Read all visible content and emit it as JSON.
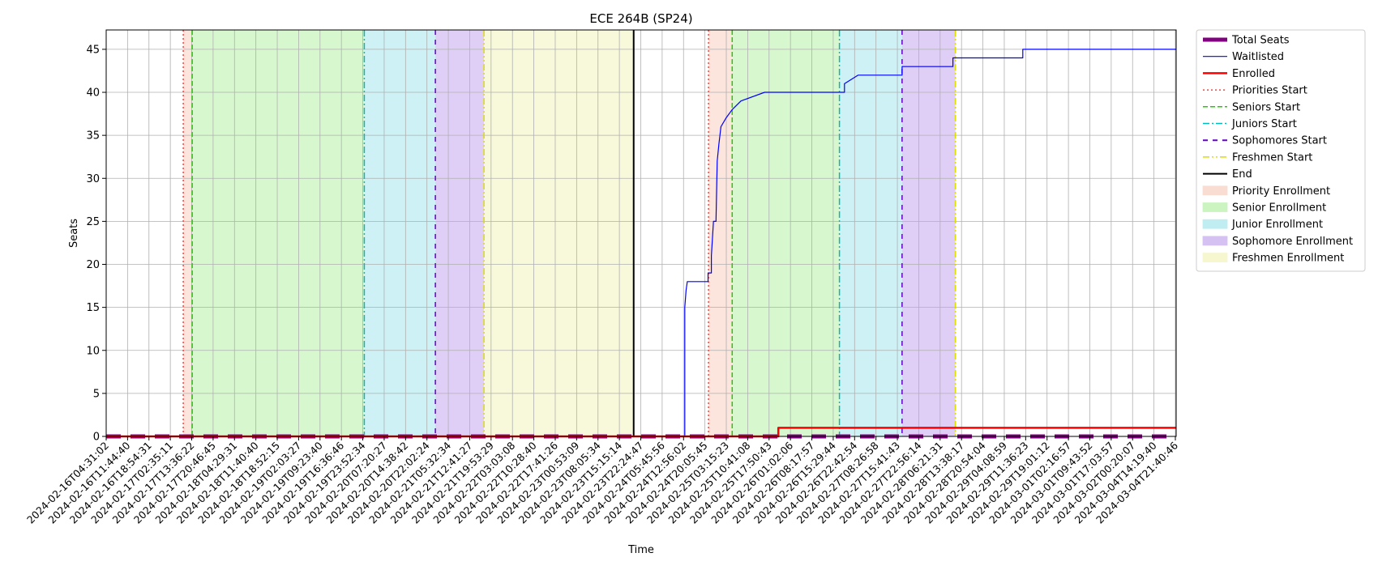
{
  "chart_data": {
    "type": "line",
    "title": "ECE 264B (SP24)",
    "xlabel": "Time",
    "ylabel": "Seats",
    "xlim": [
      "2024-02-16T04:31:02",
      "2024-03-05T01:30:00"
    ],
    "ylim": [
      0,
      47.25
    ],
    "grid": true,
    "legend_position": "outside-right",
    "x_tick_labels": [
      "2024-02-16T04:31:02",
      "2024-02-16T11:44:40",
      "2024-02-16T18:54:31",
      "2024-02-17T02:35:11",
      "2024-02-17T13:36:22",
      "2024-02-17T20:46:45",
      "2024-02-18T04:29:31",
      "2024-02-18T11:40:40",
      "2024-02-18T18:52:15",
      "2024-02-19T02:03:27",
      "2024-02-19T09:23:40",
      "2024-02-19T16:36:46",
      "2024-02-19T23:52:34",
      "2024-02-20T07:20:27",
      "2024-02-20T14:38:42",
      "2024-02-20T22:02:24",
      "2024-02-21T05:32:34",
      "2024-02-21T12:41:27",
      "2024-02-21T19:53:29",
      "2024-02-22T03:03:08",
      "2024-02-22T10:28:40",
      "2024-02-22T17:41:26",
      "2024-02-23T00:53:09",
      "2024-02-23T08:05:34",
      "2024-02-23T15:15:14",
      "2024-02-23T22:24:47",
      "2024-02-24T05:45:56",
      "2024-02-24T12:56:02",
      "2024-02-24T20:05:45",
      "2024-02-25T03:15:23",
      "2024-02-25T10:41:08",
      "2024-02-25T17:50:43",
      "2024-02-26T01:02:06",
      "2024-02-26T08:17:57",
      "2024-02-26T15:29:44",
      "2024-02-26T22:42:54",
      "2024-02-27T08:26:58",
      "2024-02-27T15:41:43",
      "2024-02-27T22:56:14",
      "2024-02-28T06:21:31",
      "2024-02-28T13:38:17",
      "2024-02-28T20:54:04",
      "2024-02-29T04:08:59",
      "2024-02-29T11:36:23",
      "2024-02-29T19:01:12",
      "2024-03-01T02:16:57",
      "2024-03-01T09:43:52",
      "2024-03-01T17:03:57",
      "2024-03-02T00:20:07",
      "2024-03-04T14:19:40",
      "2024-03-04T21:40:46"
    ],
    "y_ticks": [
      0,
      5,
      10,
      15,
      20,
      25,
      30,
      35,
      40,
      45
    ],
    "series": [
      {
        "name": "Total Seats",
        "color": "#800080",
        "style": "dashed-thick",
        "points": [
          [
            "2024-02-16T04:31:02",
            0
          ],
          [
            "2024-03-05T01:30:00",
            0
          ]
        ]
      },
      {
        "name": "Waitlisted",
        "color": "#0000ff",
        "style": "solid-thin",
        "points": [
          [
            "2024-02-16T04:31:02",
            0
          ],
          [
            "2024-02-25T20:30:00",
            0
          ],
          [
            "2024-02-25T20:30:00",
            15
          ],
          [
            "2024-02-25T21:00:00",
            17
          ],
          [
            "2024-02-25T21:30:00",
            18
          ],
          [
            "2024-02-26T05:50:00",
            18
          ],
          [
            "2024-02-26T05:50:00",
            19
          ],
          [
            "2024-02-26T07:10:00",
            19
          ],
          [
            "2024-02-26T07:10:00",
            21
          ],
          [
            "2024-02-26T08:00:00",
            25
          ],
          [
            "2024-02-26T09:00:00",
            25
          ],
          [
            "2024-02-26T09:30:00",
            32
          ],
          [
            "2024-02-26T10:10:00",
            34
          ],
          [
            "2024-02-26T11:00:00",
            36
          ],
          [
            "2024-02-26T13:00:00",
            37
          ],
          [
            "2024-02-26T15:30:00",
            38
          ],
          [
            "2024-02-26T19:00:00",
            39
          ],
          [
            "2024-02-27T04:30:00",
            40
          ],
          [
            "2024-02-28T12:30:00",
            40
          ],
          [
            "2024-02-28T12:30:00",
            41
          ],
          [
            "2024-02-28T18:00:00",
            42
          ],
          [
            "2024-02-29T11:36:23",
            42
          ],
          [
            "2024-02-29T11:36:23",
            43
          ],
          [
            "2024-03-01T08:00:00",
            43
          ],
          [
            "2024-03-01T08:00:00",
            44
          ],
          [
            "2024-03-02T12:00:00",
            44
          ],
          [
            "2024-03-02T12:00:00",
            45
          ],
          [
            "2024-03-05T01:30:00",
            45
          ]
        ]
      },
      {
        "name": "Enrolled",
        "color": "#ff0000",
        "style": "solid-thick",
        "points": [
          [
            "2024-02-16T04:31:02",
            0
          ],
          [
            "2024-02-27T10:00:00",
            0
          ],
          [
            "2024-02-27T10:00:00",
            1
          ],
          [
            "2024-03-05T01:30:00",
            1
          ]
        ]
      }
    ],
    "markers": [
      {
        "name": "Priorities Start",
        "time": "2024-02-17T11:25:00",
        "color": "#ff4040",
        "dash": "2,3"
      },
      {
        "name": "Seniors Start",
        "time": "2024-02-17T15:00:00",
        "color": "#22cc00",
        "dash": "6,3"
      },
      {
        "name": "Juniors Start",
        "time": "2024-02-20T12:00:00",
        "color": "#00bbbb",
        "dash": "8,3,2,3"
      },
      {
        "name": "Sophomores Start",
        "time": "2024-02-21T16:30:00",
        "color": "#6600cc",
        "dash": "6,6"
      },
      {
        "name": "Freshmen Start",
        "time": "2024-02-22T12:00:00",
        "color": "#dddd00",
        "dash": "8,3,2,3,2,3"
      },
      {
        "name": "End",
        "time": "2024-02-25T00:00:00",
        "color": "#000000",
        "dash": ""
      },
      {
        "name": "Priorities Start",
        "time": "2024-02-26T06:00:00",
        "color": "#ff4040",
        "dash": "2,3"
      },
      {
        "name": "Seniors Start",
        "time": "2024-02-26T15:30:00",
        "color": "#22cc00",
        "dash": "6,3"
      },
      {
        "name": "Juniors Start",
        "time": "2024-02-28T10:30:00",
        "color": "#00bbbb",
        "dash": "8,3,2,3"
      },
      {
        "name": "Sophomores Start",
        "time": "2024-02-29T11:36:23",
        "color": "#6600cc",
        "dash": "6,6"
      },
      {
        "name": "Freshmen Start",
        "time": "2024-03-01T09:00:00",
        "color": "#dddd00",
        "dash": "8,3,2,3,2,3"
      }
    ],
    "spans": [
      {
        "name": "Priority Enrollment",
        "start": "2024-02-17T11:25:00",
        "end": "2024-02-17T15:00:00",
        "color": "#f8cfc0"
      },
      {
        "name": "Senior Enrollment",
        "start": "2024-02-17T15:00:00",
        "end": "2024-02-20T12:00:00",
        "color": "#b6f0a8"
      },
      {
        "name": "Junior Enrollment",
        "start": "2024-02-20T12:00:00",
        "end": "2024-02-21T16:30:00",
        "color": "#a4e6ec"
      },
      {
        "name": "Sophomore Enrollment",
        "start": "2024-02-21T16:30:00",
        "end": "2024-02-22T12:00:00",
        "color": "#c5a8ee"
      },
      {
        "name": "Freshmen Enrollment",
        "start": "2024-02-22T12:00:00",
        "end": "2024-02-25T00:00:00",
        "color": "#f3f4bc"
      },
      {
        "name": "Priority Enrollment",
        "start": "2024-02-26T06:00:00",
        "end": "2024-02-26T15:30:00",
        "color": "#f8cfc0"
      },
      {
        "name": "Senior Enrollment",
        "start": "2024-02-26T15:30:00",
        "end": "2024-02-28T10:30:00",
        "color": "#b6f0a8"
      },
      {
        "name": "Junior Enrollment",
        "start": "2024-02-28T10:30:00",
        "end": "2024-02-29T11:36:23",
        "color": "#a4e6ec"
      },
      {
        "name": "Sophomore Enrollment",
        "start": "2024-02-29T11:36:23",
        "end": "2024-03-01T09:00:00",
        "color": "#c5a8ee"
      }
    ],
    "legend": [
      {
        "label": "Total Seats",
        "kind": "line",
        "color": "#800080",
        "dash": "",
        "width": 5
      },
      {
        "label": "Waitlisted",
        "kind": "line",
        "color": "#0000ff",
        "dash": "",
        "width": 1.2
      },
      {
        "label": "Enrolled",
        "kind": "line",
        "color": "#ff0000",
        "dash": "",
        "width": 2.5
      },
      {
        "label": "Priorities Start",
        "kind": "line",
        "color": "#ff4040",
        "dash": "2,3",
        "width": 1.5
      },
      {
        "label": "Seniors Start",
        "kind": "line",
        "color": "#22cc00",
        "dash": "6,3",
        "width": 1.5
      },
      {
        "label": "Juniors Start",
        "kind": "line",
        "color": "#00bbbb",
        "dash": "8,3,2,3",
        "width": 1.5
      },
      {
        "label": "Sophomores Start",
        "kind": "line",
        "color": "#6600cc",
        "dash": "6,6",
        "width": 2
      },
      {
        "label": "Freshmen Start",
        "kind": "line",
        "color": "#dddd00",
        "dash": "8,3,2,3,2,3",
        "width": 1.5
      },
      {
        "label": "End",
        "kind": "line",
        "color": "#000000",
        "dash": "",
        "width": 2
      },
      {
        "label": "Priority Enrollment",
        "kind": "patch",
        "color": "#f8cfc0"
      },
      {
        "label": "Senior Enrollment",
        "kind": "patch",
        "color": "#b6f0a8"
      },
      {
        "label": "Junior Enrollment",
        "kind": "patch",
        "color": "#a4e6ec"
      },
      {
        "label": "Sophomore Enrollment",
        "kind": "patch",
        "color": "#c5a8ee"
      },
      {
        "label": "Freshmen Enrollment",
        "kind": "patch",
        "color": "#f3f4bc"
      }
    ]
  }
}
